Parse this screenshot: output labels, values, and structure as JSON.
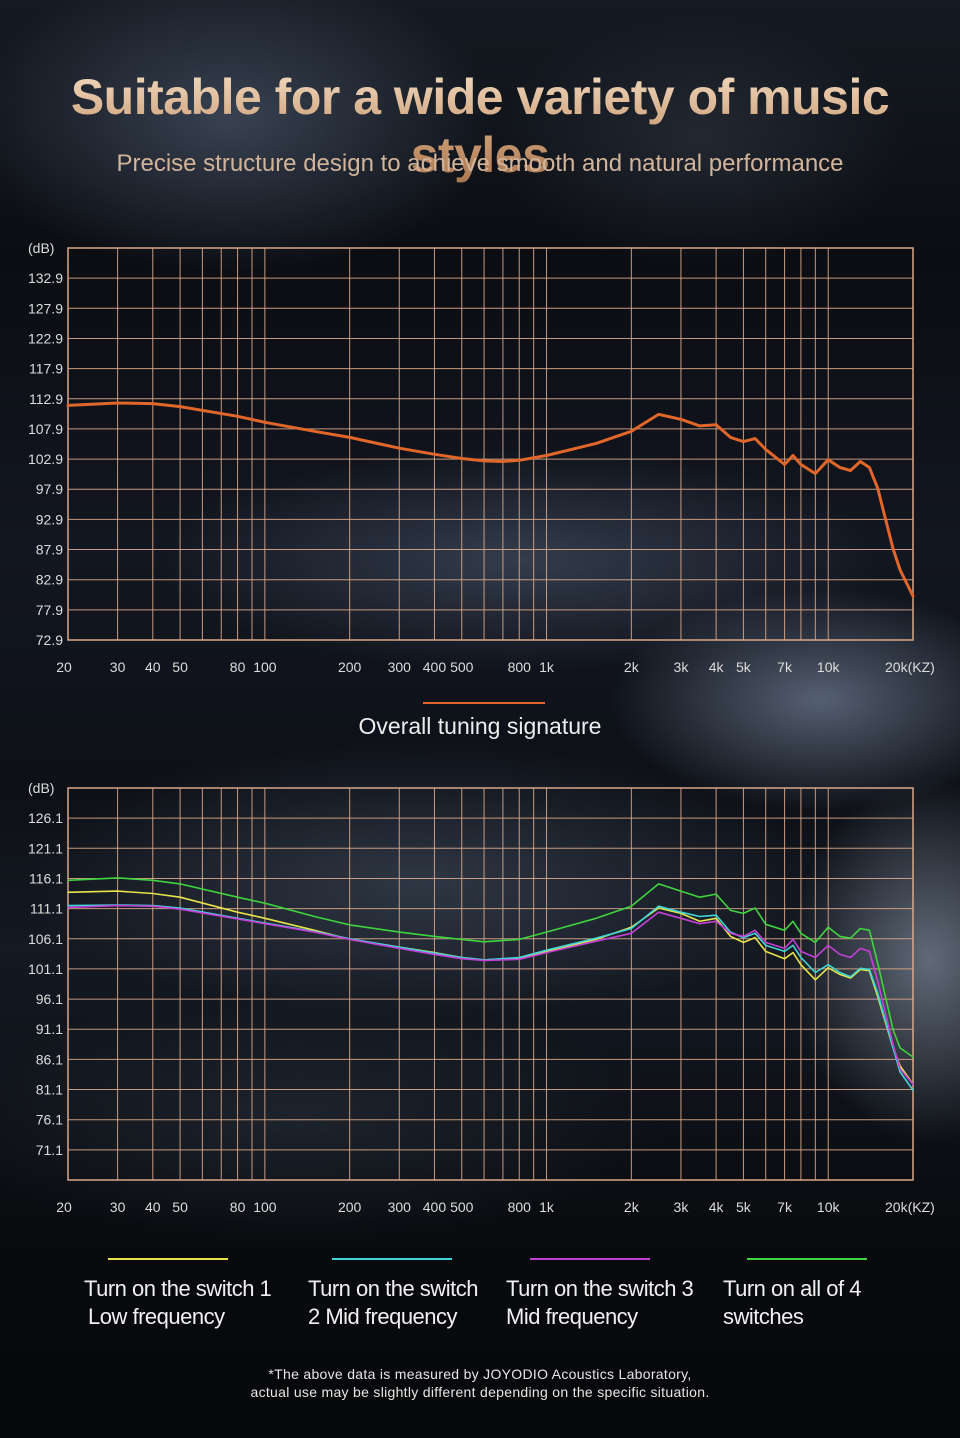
{
  "header": {
    "title": "Suitable for a wide variety of music styles",
    "subtitle": "Precise structure design to achieve smooth and natural performance"
  },
  "section_title": "Overall tuning signature",
  "legend": [
    {
      "label_line1": "Turn on the switch 1",
      "label_line2": "Low frequency",
      "color": "#e6e44a"
    },
    {
      "label_line1": "Turn on the switch",
      "label_line2": "2 Mid frequency",
      "color": "#3fd6d8"
    },
    {
      "label_line1": "Turn on the switch 3",
      "label_line2": "Mid frequency",
      "color": "#c43fd6"
    },
    {
      "label_line1": "Turn on all of 4",
      "label_line2": "switches",
      "color": "#3ed43e"
    }
  ],
  "footnote": {
    "line1": "*The above data is measured by JOYODIO Acoustics Laboratory,",
    "line2": "actual use may be slightly different depending on the specific situation."
  },
  "colors": {
    "grid": "#d9a88a",
    "accent": "#e0662a",
    "title_gold": "#c99a72",
    "axis_text": "#dcdcdc"
  },
  "chart_data": [
    {
      "type": "line",
      "title": "",
      "ylabel": "(dB)",
      "xscale": "log",
      "xlim": [
        20,
        20000
      ],
      "ylim": [
        72.9,
        137.9
      ],
      "grid": true,
      "ytick_labels": [
        "72.9",
        "77.9",
        "82.9",
        "87.9",
        "92.9",
        "97.9",
        "102.9",
        "107.9",
        "112.9",
        "117.9",
        "122.9",
        "127.9",
        "132.9"
      ],
      "xtick_labels": [
        "20",
        "30",
        "40",
        "50",
        "80",
        "100",
        "200",
        "300",
        "400",
        "500",
        "800",
        "1k",
        "2k",
        "3k",
        "4k",
        "5k",
        "7k",
        "10k",
        "20k(KZ)"
      ],
      "series": [
        {
          "color": "#e0662a",
          "x": [
            20,
            30,
            40,
            50,
            80,
            100,
            150,
            200,
            300,
            400,
            500,
            600,
            700,
            800,
            1000,
            1500,
            2000,
            2500,
            3000,
            3500,
            4000,
            4500,
            5000,
            5500,
            6000,
            7000,
            7500,
            8000,
            9000,
            10000,
            11000,
            12000,
            13000,
            14000,
            15000,
            17000,
            18000,
            20000
          ],
          "y": [
            111.8,
            112.2,
            112.1,
            111.6,
            110,
            109,
            107.5,
            106.5,
            104.7,
            103.7,
            103,
            102.6,
            102.5,
            102.7,
            103.5,
            105.5,
            107.5,
            110.3,
            109.5,
            108.4,
            108.6,
            106.5,
            105.8,
            106.3,
            104.5,
            102,
            103.5,
            102,
            100.5,
            102.8,
            101.5,
            101,
            102.5,
            101.5,
            98,
            88,
            84.5,
            80.2
          ]
        }
      ]
    },
    {
      "type": "line",
      "title": "",
      "ylabel": "(dB)",
      "xscale": "log",
      "xlim": [
        20,
        20000
      ],
      "ylim": [
        66.1,
        131.1
      ],
      "grid": true,
      "ytick_labels": [
        "71.1",
        "76.1",
        "81.1",
        "86.1",
        "91.1",
        "96.1",
        "101.1",
        "106.1",
        "111.1",
        "116.1",
        "121.1",
        "126.1"
      ],
      "xtick_labels": [
        "20",
        "30",
        "40",
        "50",
        "80",
        "100",
        "200",
        "300",
        "400",
        "500",
        "800",
        "1k",
        "2k",
        "3k",
        "4k",
        "5k",
        "7k",
        "10k",
        "20k(KZ)"
      ],
      "series": [
        {
          "name": "Turn on the switch 1 Low frequency",
          "color": "#e6e44a",
          "x": [
            20,
            30,
            40,
            50,
            80,
            100,
            150,
            200,
            300,
            400,
            500,
            600,
            800,
            1000,
            1500,
            2000,
            2500,
            3000,
            3500,
            4000,
            4500,
            5000,
            5500,
            6000,
            7000,
            7500,
            8000,
            9000,
            10000,
            11000,
            12000,
            13000,
            14000,
            15000,
            17000,
            18000,
            20000
          ],
          "y": [
            113.8,
            114,
            113.6,
            113,
            110.5,
            109.5,
            107.5,
            106,
            104.7,
            103.8,
            103,
            102.6,
            102.9,
            104,
            106,
            108,
            111.2,
            110.3,
            109,
            109.5,
            106.5,
            105.5,
            106.3,
            104,
            102.8,
            103.8,
            101.8,
            99.3,
            101.3,
            100.2,
            99.6,
            101,
            100.8,
            96.5,
            88,
            85,
            82
          ]
        },
        {
          "name": "Turn on the switch 2 Mid frequency",
          "color": "#3fd6d8",
          "x": [
            20,
            30,
            40,
            50,
            80,
            100,
            150,
            200,
            300,
            400,
            500,
            600,
            800,
            1000,
            1500,
            2000,
            2500,
            3000,
            3500,
            4000,
            4500,
            5000,
            5500,
            6000,
            7000,
            7500,
            8000,
            9000,
            10000,
            11000,
            12000,
            13000,
            14000,
            15000,
            17000,
            18000,
            20000
          ],
          "y": [
            111.6,
            111.7,
            111.6,
            111.2,
            109.5,
            108.7,
            107.3,
            106.1,
            104.7,
            103.7,
            103,
            102.6,
            103,
            104.2,
            106.2,
            107.8,
            111.5,
            110.5,
            109.8,
            110,
            107.2,
            106.3,
            107,
            105,
            104,
            105,
            103,
            100.5,
            101.8,
            100.5,
            99.8,
            101.2,
            101,
            97,
            88,
            84,
            81
          ]
        },
        {
          "name": "Turn on the switch 3 Mid frequency",
          "color": "#c43fd6",
          "x": [
            20,
            30,
            40,
            50,
            80,
            100,
            150,
            200,
            300,
            400,
            500,
            600,
            800,
            1000,
            1500,
            2000,
            2500,
            3000,
            3500,
            4000,
            4500,
            5000,
            5500,
            6000,
            7000,
            7500,
            8000,
            9000,
            10000,
            11000,
            12000,
            13000,
            14000,
            15000,
            17000,
            18000,
            20000
          ],
          "y": [
            111.3,
            111.6,
            111.5,
            111,
            109.4,
            108.6,
            107.2,
            106,
            104.5,
            103.5,
            102.8,
            102.5,
            102.7,
            103.8,
            105.7,
            107,
            110.5,
            109.5,
            108.6,
            109,
            107,
            106.5,
            107.5,
            105.5,
            104.5,
            106,
            104,
            103,
            105,
            103.5,
            103,
            104.5,
            104,
            99,
            88.5,
            84.5,
            82
          ]
        },
        {
          "name": "Turn on all of 4 switches",
          "color": "#3ed43e",
          "x": [
            20,
            30,
            40,
            50,
            80,
            100,
            150,
            200,
            300,
            400,
            500,
            600,
            800,
            1000,
            1500,
            2000,
            2500,
            3000,
            3500,
            4000,
            4500,
            5000,
            5500,
            6000,
            7000,
            7500,
            8000,
            9000,
            10000,
            11000,
            12000,
            13000,
            14000,
            15000,
            17000,
            18000,
            20000
          ],
          "y": [
            115.8,
            116.2,
            115.8,
            115.2,
            113,
            112,
            109.8,
            108.4,
            107.2,
            106.5,
            106,
            105.6,
            106,
            107.2,
            109.5,
            111.5,
            115.2,
            114,
            113,
            113.5,
            110.8,
            110.3,
            111.2,
            108.5,
            107.5,
            109,
            107,
            105.5,
            108,
            106.5,
            106.2,
            107.8,
            107.5,
            102,
            91,
            88,
            86.5
          ]
        }
      ]
    }
  ]
}
